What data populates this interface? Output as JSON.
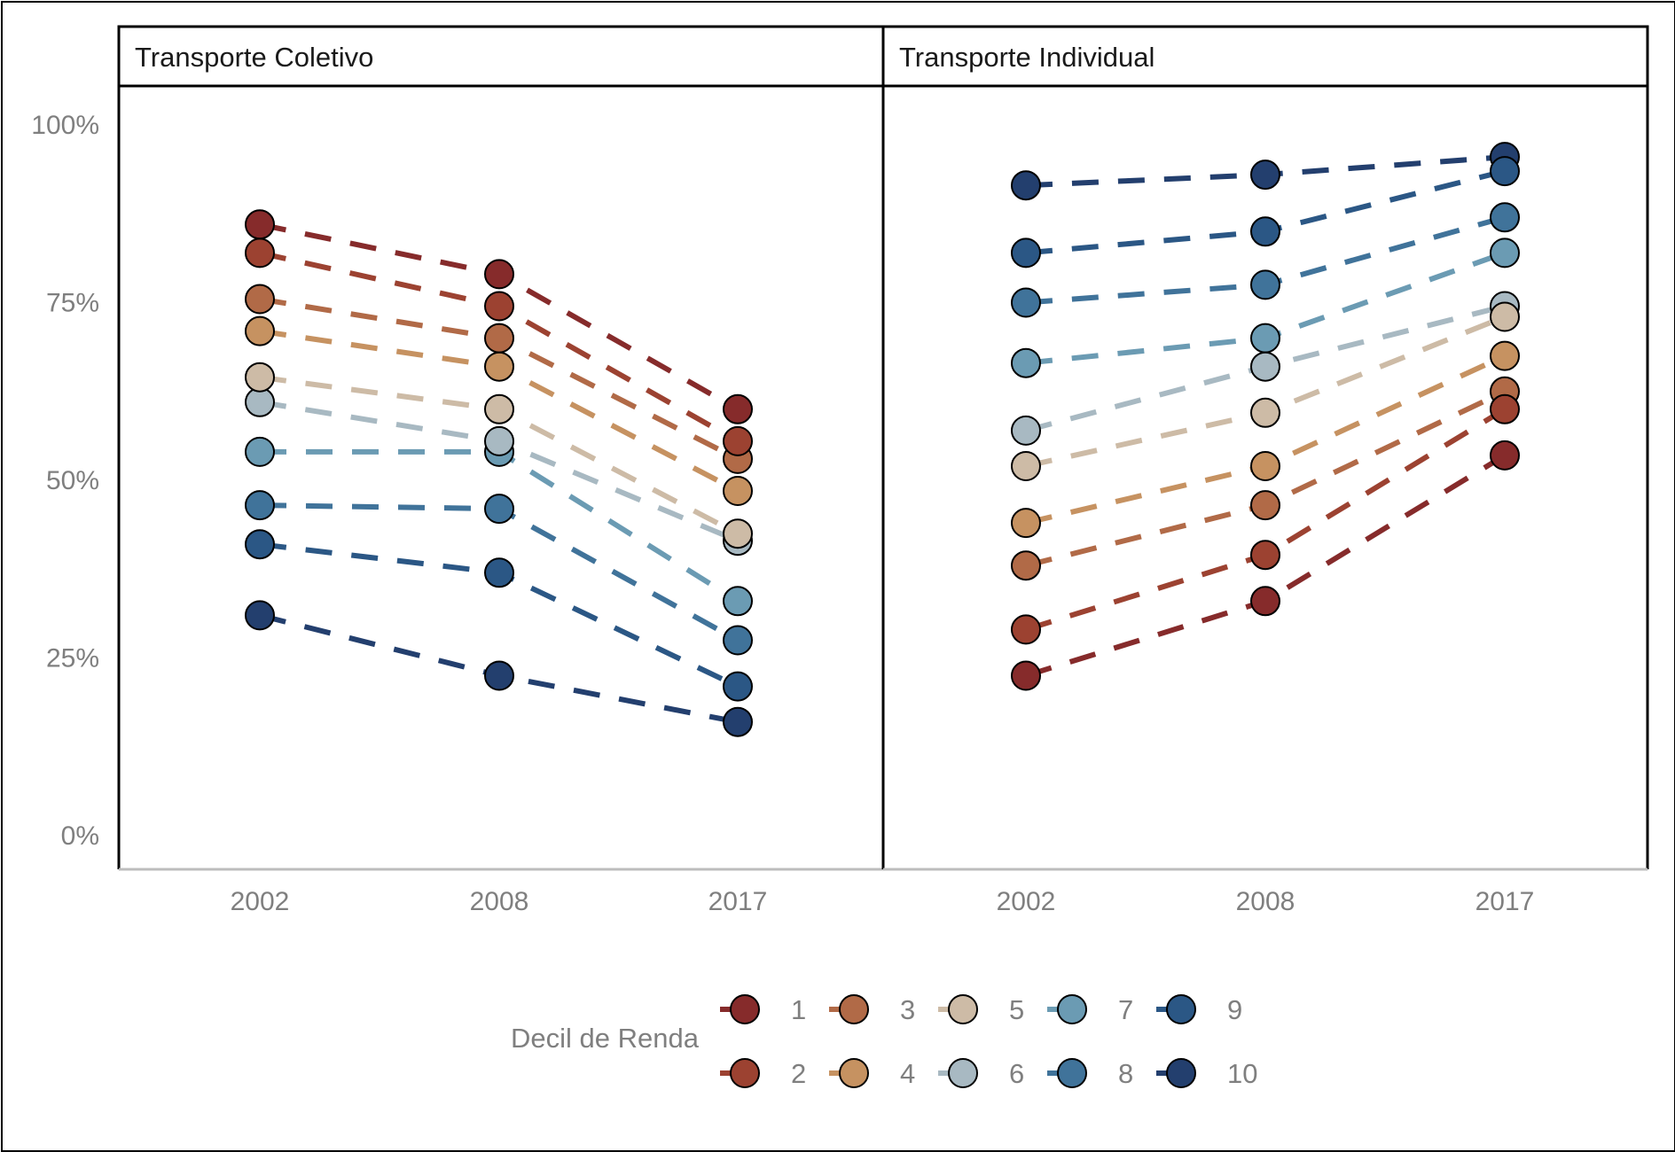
{
  "chart_data": {
    "type": "line",
    "x": [
      "2002",
      "2008",
      "2017"
    ],
    "yticks": [
      "0%",
      "25%",
      "50%",
      "75%",
      "100%"
    ],
    "ylim": [
      0,
      1.05
    ],
    "grid": false,
    "line_style": "dashed",
    "legend": {
      "title": "Decil de Renda",
      "position": "bottom",
      "items": [
        {
          "label": "1",
          "color": "#862b2b"
        },
        {
          "label": "2",
          "color": "#9c4231"
        },
        {
          "label": "3",
          "color": "#b16a47"
        },
        {
          "label": "4",
          "color": "#c69261"
        },
        {
          "label": "5",
          "color": "#cdbba6"
        },
        {
          "label": "6",
          "color": "#a8b9c2"
        },
        {
          "label": "7",
          "color": "#6b9bb3"
        },
        {
          "label": "8",
          "color": "#40739a"
        },
        {
          "label": "9",
          "color": "#2b5785"
        },
        {
          "label": "10",
          "color": "#233f6e"
        }
      ]
    },
    "panels": [
      {
        "title": "Transporte Coletivo",
        "series": [
          {
            "name": "1",
            "values": [
              0.86,
              0.79,
              0.6
            ]
          },
          {
            "name": "2",
            "values": [
              0.82,
              0.745,
              0.555
            ]
          },
          {
            "name": "3",
            "values": [
              0.755,
              0.7,
              0.53
            ]
          },
          {
            "name": "4",
            "values": [
              0.71,
              0.66,
              0.485
            ]
          },
          {
            "name": "5",
            "values": [
              0.645,
              0.6,
              0.425
            ]
          },
          {
            "name": "6",
            "values": [
              0.61,
              0.555,
              0.415
            ]
          },
          {
            "name": "7",
            "values": [
              0.54,
              0.54,
              0.33
            ]
          },
          {
            "name": "8",
            "values": [
              0.465,
              0.46,
              0.275
            ]
          },
          {
            "name": "9",
            "values": [
              0.41,
              0.37,
              0.21
            ]
          },
          {
            "name": "10",
            "values": [
              0.31,
              0.225,
              0.16
            ]
          }
        ]
      },
      {
        "title": "Transporte Individual",
        "series": [
          {
            "name": "1",
            "values": [
              0.225,
              0.33,
              0.535
            ]
          },
          {
            "name": "2",
            "values": [
              0.29,
              0.395,
              0.6
            ]
          },
          {
            "name": "3",
            "values": [
              0.38,
              0.465,
              0.625
            ]
          },
          {
            "name": "4",
            "values": [
              0.44,
              0.52,
              0.675
            ]
          },
          {
            "name": "5",
            "values": [
              0.52,
              0.595,
              0.73
            ]
          },
          {
            "name": "6",
            "values": [
              0.57,
              0.66,
              0.745
            ]
          },
          {
            "name": "7",
            "values": [
              0.665,
              0.7,
              0.82
            ]
          },
          {
            "name": "8",
            "values": [
              0.75,
              0.775,
              0.87
            ]
          },
          {
            "name": "9",
            "values": [
              0.82,
              0.85,
              0.935
            ]
          },
          {
            "name": "10",
            "values": [
              0.915,
              0.93,
              0.955
            ]
          }
        ]
      }
    ]
  }
}
